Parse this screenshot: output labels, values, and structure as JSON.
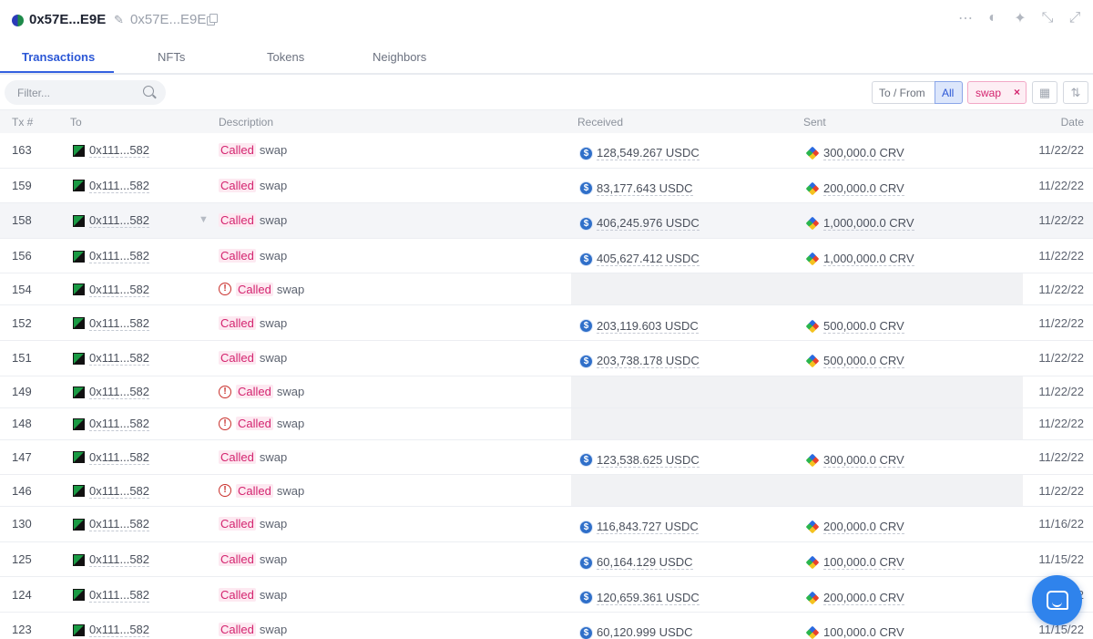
{
  "header": {
    "address": "0x57E...E9E",
    "address_alias": "0x57E...E9E",
    "icons": [
      "more-icon",
      "logo-icon",
      "pin-icon",
      "collapse-icon",
      "expand-icon"
    ]
  },
  "tabs": [
    {
      "label": "Transactions",
      "active": true
    },
    {
      "label": "NFTs",
      "active": false
    },
    {
      "label": "Tokens",
      "active": false
    },
    {
      "label": "Neighbors",
      "active": false
    }
  ],
  "filter": {
    "placeholder": "Filter...",
    "to_from_label": "To / From",
    "all_label": "All",
    "chip_label": "swap",
    "chip_remove": "×"
  },
  "columns": {
    "tx": "Tx #",
    "to": "To",
    "description": "Description",
    "received": "Received",
    "sent": "Sent",
    "date": "Date"
  },
  "rows": [
    {
      "tx": "163",
      "to": "0x111...582",
      "called": "Called",
      "method": "swap",
      "error": false,
      "received": "128,549.267 USDC",
      "sent": "300,000.0 CRV",
      "date": "11/22/22"
    },
    {
      "tx": "159",
      "to": "0x111...582",
      "called": "Called",
      "method": "swap",
      "error": false,
      "received": "83,177.643 USDC",
      "sent": "200,000.0 CRV",
      "date": "11/22/22"
    },
    {
      "tx": "158",
      "to": "0x111...582",
      "called": "Called",
      "method": "swap",
      "error": false,
      "received": "406,245.976 USDC",
      "sent": "1,000,000.0 CRV",
      "date": "11/22/22"
    },
    {
      "tx": "156",
      "to": "0x111...582",
      "called": "Called",
      "method": "swap",
      "error": false,
      "received": "405,627.412 USDC",
      "sent": "1,000,000.0 CRV",
      "date": "11/22/22"
    },
    {
      "tx": "154",
      "to": "0x111...582",
      "called": "Called",
      "method": "swap",
      "error": true,
      "received": "",
      "sent": "",
      "date": "11/22/22"
    },
    {
      "tx": "152",
      "to": "0x111...582",
      "called": "Called",
      "method": "swap",
      "error": false,
      "received": "203,119.603 USDC",
      "sent": "500,000.0 CRV",
      "date": "11/22/22"
    },
    {
      "tx": "151",
      "to": "0x111...582",
      "called": "Called",
      "method": "swap",
      "error": false,
      "received": "203,738.178 USDC",
      "sent": "500,000.0 CRV",
      "date": "11/22/22"
    },
    {
      "tx": "149",
      "to": "0x111...582",
      "called": "Called",
      "method": "swap",
      "error": true,
      "received": "",
      "sent": "",
      "date": "11/22/22"
    },
    {
      "tx": "148",
      "to": "0x111...582",
      "called": "Called",
      "method": "swap",
      "error": true,
      "received": "",
      "sent": "",
      "date": "11/22/22"
    },
    {
      "tx": "147",
      "to": "0x111...582",
      "called": "Called",
      "method": "swap",
      "error": false,
      "received": "123,538.625 USDC",
      "sent": "300,000.0 CRV",
      "date": "11/22/22"
    },
    {
      "tx": "146",
      "to": "0x111...582",
      "called": "Called",
      "method": "swap",
      "error": true,
      "received": "",
      "sent": "",
      "date": "11/22/22"
    },
    {
      "tx": "130",
      "to": "0x111...582",
      "called": "Called",
      "method": "swap",
      "error": false,
      "received": "116,843.727 USDC",
      "sent": "200,000.0 CRV",
      "date": "11/16/22"
    },
    {
      "tx": "125",
      "to": "0x111...582",
      "called": "Called",
      "method": "swap",
      "error": false,
      "received": "60,164.129 USDC",
      "sent": "100,000.0 CRV",
      "date": "11/15/22"
    },
    {
      "tx": "124",
      "to": "0x111...582",
      "called": "Called",
      "method": "swap",
      "error": false,
      "received": "120,659.361 USDC",
      "sent": "200,000.0 CRV",
      "date": "11/15/22"
    },
    {
      "tx": "123",
      "to": "0x111...582",
      "called": "Called",
      "method": "swap",
      "error": false,
      "received": "60,120.999 USDC",
      "sent": "100,000.0 CRV",
      "date": "11/15/22"
    }
  ],
  "colors": {
    "accent": "#3461e0",
    "called_text": "#d4246f",
    "error": "#c9302c",
    "chat_button": "#2f83ec"
  }
}
